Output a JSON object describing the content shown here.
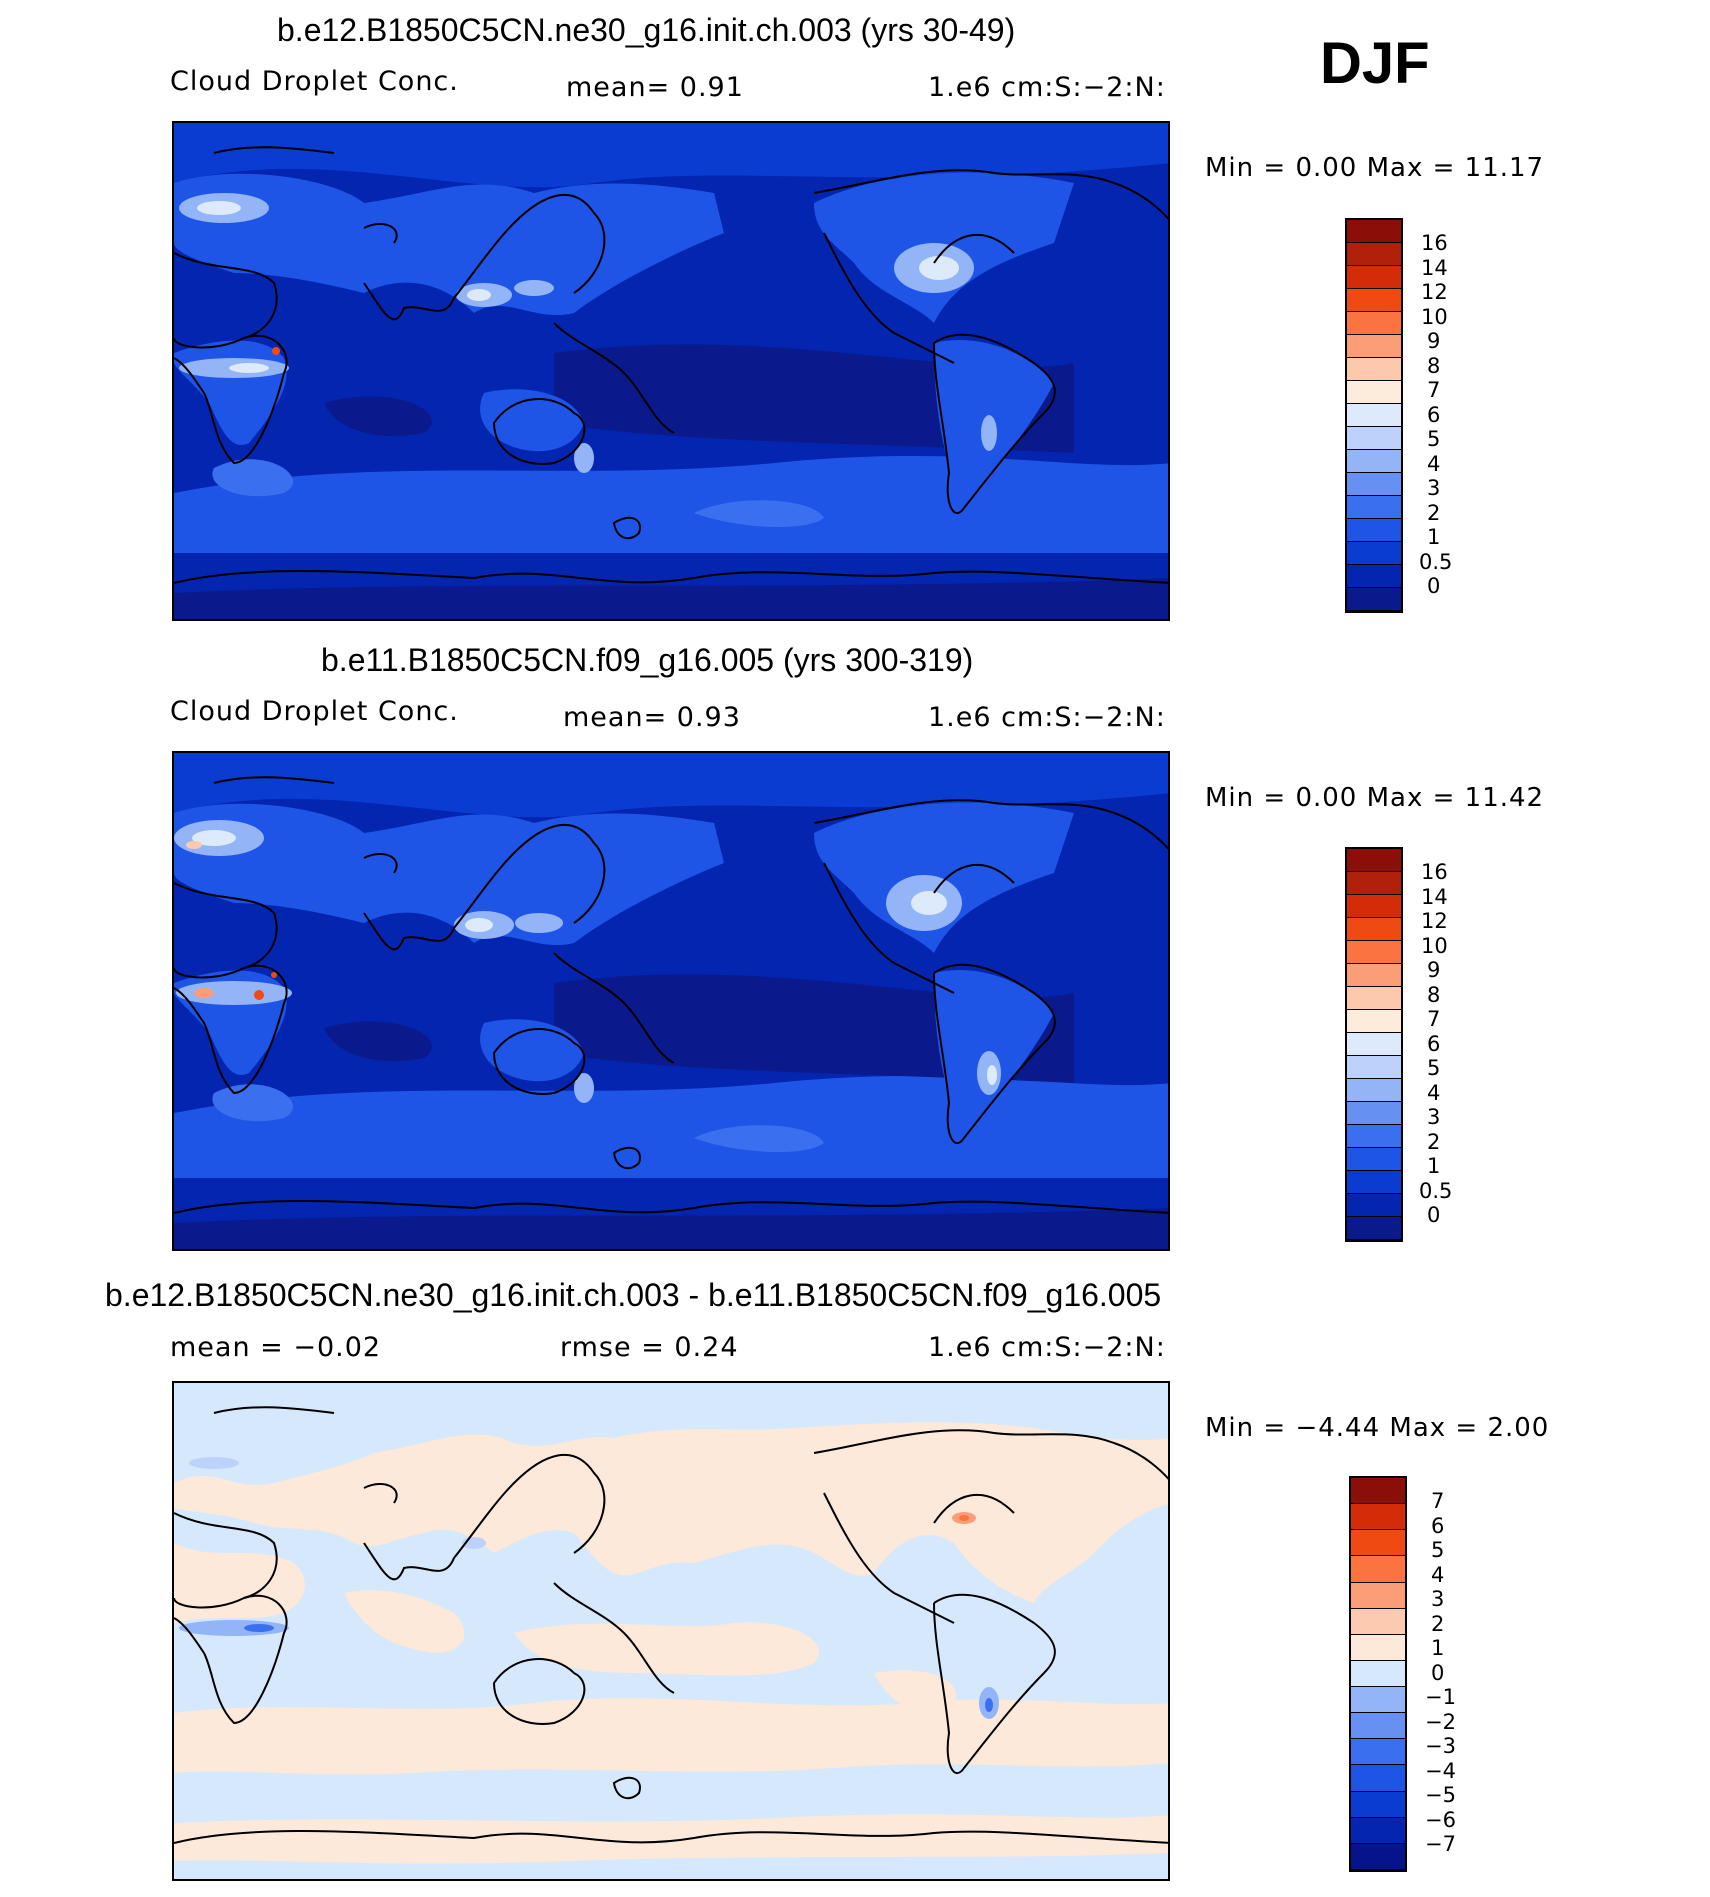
{
  "season": "DJF",
  "colors": {
    "cdnc": [
      "#0a1a8c",
      "#0325b0",
      "#0a3cd2",
      "#1e55e6",
      "#3a70f0",
      "#6690f2",
      "#93b4f6",
      "#bcd2fa",
      "#ddeafc",
      "#fdebdc",
      "#fcc9ad",
      "#fb9d76",
      "#fb7340",
      "#ef4a12",
      "#d42c09",
      "#b0200b",
      "#8b0f08"
    ],
    "diff": [
      "#06148c",
      "#0325b0",
      "#0a3cd2",
      "#1e55e6",
      "#3a70f0",
      "#6690f2",
      "#93b4f6",
      "#d6e8fc",
      "#fde9da",
      "#fccab0",
      "#fb9d76",
      "#fb7340",
      "#ef4a12",
      "#d42c09",
      "#8b0f08"
    ]
  },
  "panels": [
    {
      "id": "p1",
      "title": "b.e12.B1850C5CN.ne30_g16.init.ch.003 (yrs 30-49)",
      "left_label": "Cloud Droplet Conc.",
      "mid_label": "mean=    0.91",
      "units": "1.e6 cm:S:−2:N:",
      "minmax": "Min =    0.00 Max =   11.17",
      "colorbar_labels": [
        "16",
        "14",
        "12",
        "10",
        "9",
        "8",
        "7",
        "6",
        "5",
        "4",
        "3",
        "2",
        "1",
        "0.5",
        "0"
      ]
    },
    {
      "id": "p2",
      "title": "b.e11.B1850C5CN.f09_g16.005 (yrs 300-319)",
      "left_label": "Cloud Droplet Conc.",
      "mid_label": "mean=    0.93",
      "units": "1.e6 cm:S:−2:N:",
      "minmax": "Min =    0.00 Max =   11.42",
      "colorbar_labels": [
        "16",
        "14",
        "12",
        "10",
        "9",
        "8",
        "7",
        "6",
        "5",
        "4",
        "3",
        "2",
        "1",
        "0.5",
        "0"
      ]
    },
    {
      "id": "p3",
      "title": "b.e12.B1850C5CN.ne30_g16.init.ch.003 - b.e11.B1850C5CN.f09_g16.005",
      "left_label": "mean =   −0.02",
      "mid_label": "rmse =    0.24",
      "units": "1.e6 cm:S:−2:N:",
      "minmax": "Min =  −4.44 Max =    2.00",
      "colorbar_labels": [
        "7",
        "6",
        "5",
        "4",
        "3",
        "2",
        "1",
        "0",
        "−1",
        "−2",
        "−3",
        "−4",
        "−5",
        "−6",
        "−7"
      ]
    }
  ]
}
